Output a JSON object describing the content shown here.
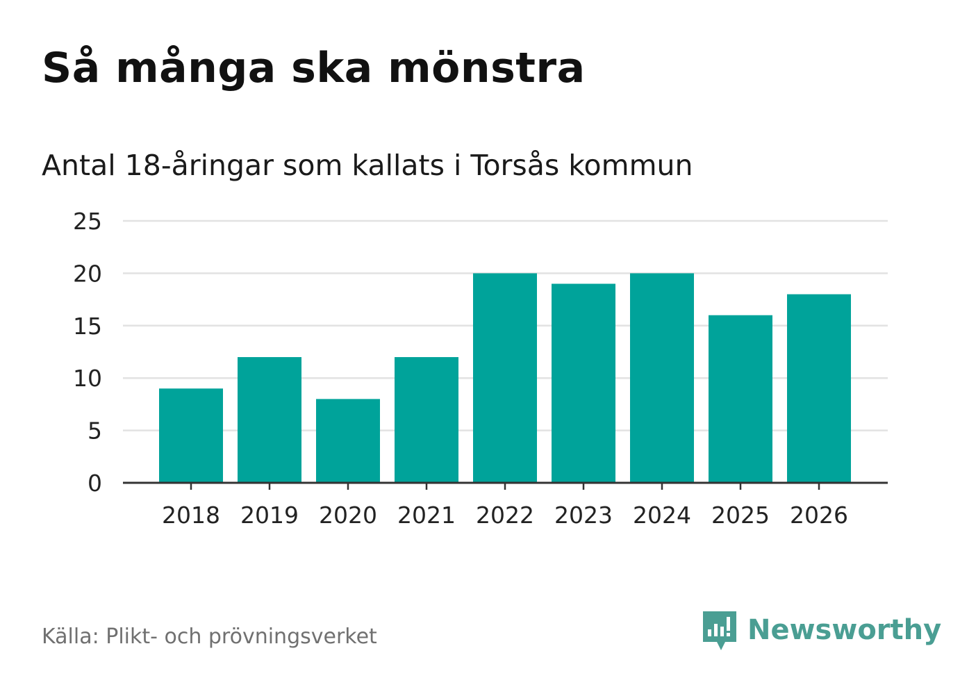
{
  "header": {
    "title": "Så många ska mönstra",
    "subtitle": "Antal 18-åringar som kallats i Torsås kommun"
  },
  "footer": {
    "source": "Källa: Plikt- och prövningsverket",
    "brand": "Newsworthy"
  },
  "colors": {
    "bar": "#00a39a",
    "grid": "#e2e2e2",
    "axis": "#333333",
    "brand": "#4a9e93"
  },
  "chart_data": {
    "type": "bar",
    "title": "Så många ska mönstra",
    "subtitle": "Antal 18-åringar som kallats i Torsås kommun",
    "xlabel": "",
    "ylabel": "",
    "categories": [
      "2018",
      "2019",
      "2020",
      "2021",
      "2022",
      "2023",
      "2024",
      "2025",
      "2026"
    ],
    "values": [
      9,
      12,
      8,
      12,
      20,
      19,
      20,
      16,
      18
    ],
    "ylim": [
      0,
      25
    ],
    "yticks": [
      0,
      5,
      10,
      15,
      20,
      25
    ],
    "grid": true
  }
}
